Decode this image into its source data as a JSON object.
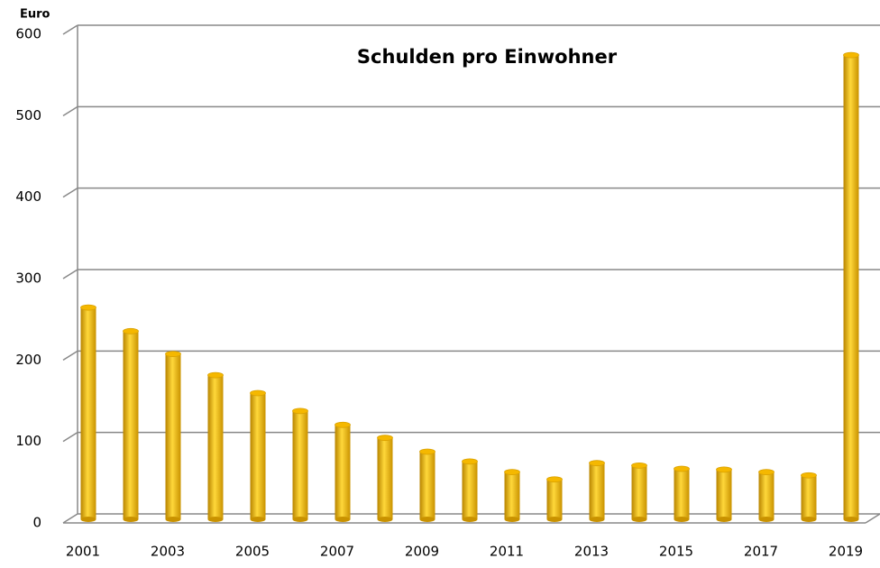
{
  "chart_data": {
    "type": "bar",
    "title": "Schulden pro Einwohner",
    "y_label": "Euro",
    "categories": [
      "2001",
      null,
      "2003",
      null,
      "2005",
      null,
      "2007",
      null,
      "2009",
      null,
      "2011",
      null,
      "2013",
      null,
      "2015",
      null,
      "2017",
      null,
      "2019"
    ],
    "values": [
      260,
      231,
      203,
      177,
      155,
      133,
      116,
      100,
      83,
      71,
      58,
      49,
      69,
      66,
      62,
      61,
      58,
      54,
      570
    ],
    "color": "#f5b800",
    "ylim": [
      0,
      600
    ],
    "yticks": [
      0,
      100,
      200,
      300,
      400,
      500,
      600
    ],
    "grid": true
  }
}
